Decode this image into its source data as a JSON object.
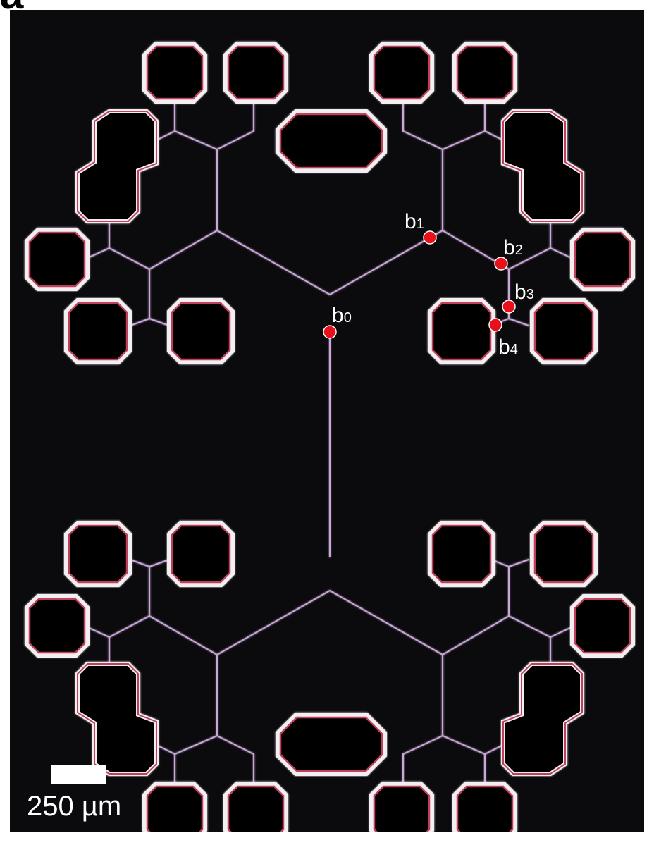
{
  "figure": {
    "panel_letter": "a",
    "scale_bar_label": "250 µm",
    "branch_points": [
      {
        "letter": "b",
        "index": "0"
      },
      {
        "letter": "b",
        "index": "1"
      },
      {
        "letter": "b",
        "index": "2"
      },
      {
        "letter": "b",
        "index": "3"
      },
      {
        "letter": "b",
        "index": "4"
      }
    ],
    "colors": {
      "background": "#0b0a0c",
      "channel": "#c8a8d8",
      "chamber_wall_inner": "#c0405a",
      "chamber_wall_outer": "#f2eef2",
      "marker": "#e8101a",
      "label": "#ffffff"
    }
  }
}
